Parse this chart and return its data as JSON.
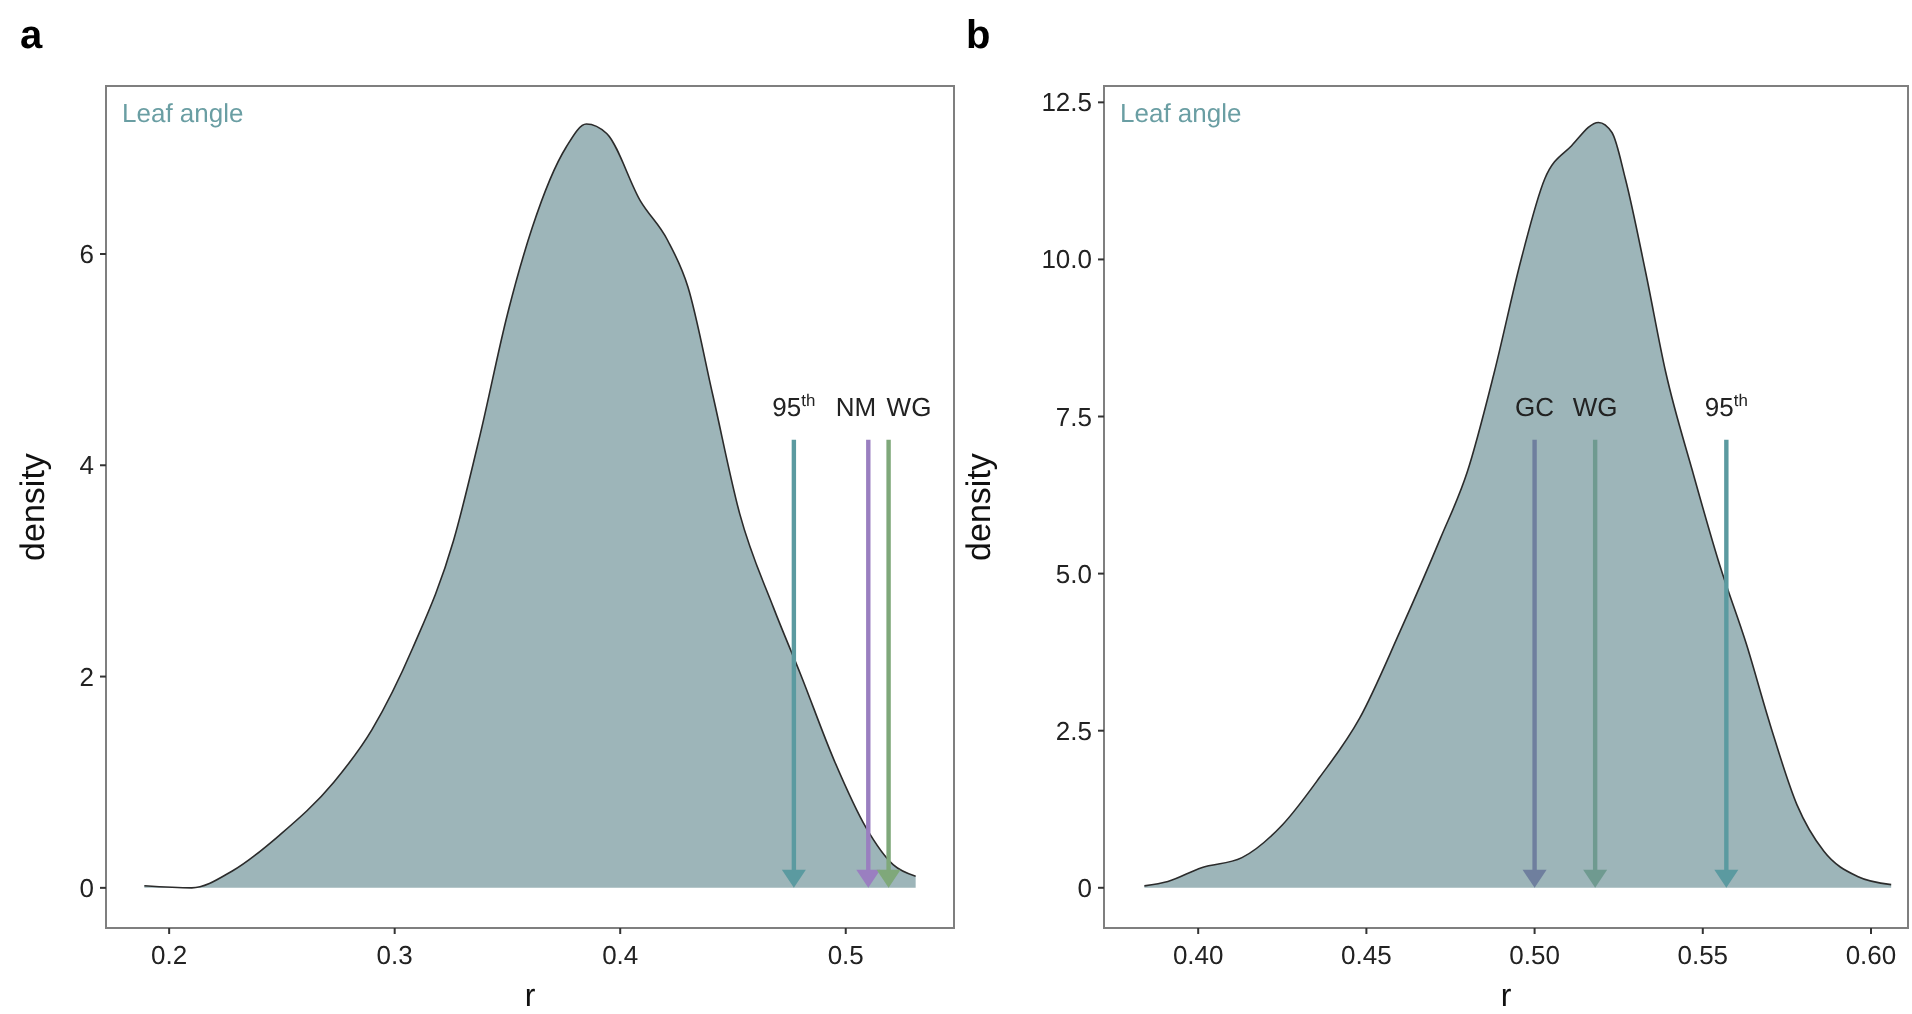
{
  "chart_data": [
    {
      "type": "area",
      "title": "a",
      "xlabel": "r",
      "ylabel": "density",
      "annotations": [
        "Leaf angle"
      ],
      "xlim": [
        0.172,
        0.548
      ],
      "ylim": [
        -0.38,
        7.59
      ],
      "xticks": [
        0.2,
        0.3,
        0.4,
        0.5
      ],
      "yticks": [
        0,
        2,
        4,
        6
      ],
      "grid": false,
      "series": [
        {
          "color": "#9db5b9",
          "x": [
            0.189,
            0.21,
            0.228,
            0.249,
            0.273,
            0.29,
            0.308,
            0.326,
            0.338,
            0.35,
            0.361,
            0.376,
            0.385,
            0.394,
            0.409,
            0.421,
            0.43,
            0.441,
            0.453,
            0.468,
            0.48,
            0.495,
            0.509,
            0.521,
            0.531
          ],
          "values": [
            0.02,
            0,
            0.16,
            0.5,
            1.0,
            1.5,
            2.27,
            3.28,
            4.3,
            5.43,
            6.25,
            7.01,
            7.23,
            7.14,
            6.5,
            6.13,
            5.69,
            4.67,
            3.54,
            2.65,
            2.02,
            1.2,
            0.57,
            0.22,
            0.11
          ]
        }
      ],
      "ref_lines": [
        {
          "axis": "x",
          "value": 0.477,
          "label": "95$^{th}$",
          "color": "#5b9aa0"
        },
        {
          "axis": "x",
          "value": 0.51,
          "label": "NM",
          "color": "#9a7fc0"
        },
        {
          "axis": "x",
          "value": 0.519,
          "label": "WG",
          "color": "#7fa87a"
        }
      ]
    },
    {
      "type": "area",
      "title": "b",
      "xlabel": "r",
      "ylabel": "density",
      "annotations": [
        "Leaf angle"
      ],
      "xlim": [
        0.372,
        0.611
      ],
      "ylim": [
        -0.64,
        12.76
      ],
      "xticks": [
        {
          "value": 0.4,
          "label": "0.40"
        },
        {
          "value": 0.45,
          "label": "0.45"
        },
        {
          "value": 0.5,
          "label": "0.50"
        },
        {
          "value": 0.55,
          "label": "0.55"
        },
        {
          "value": 0.6,
          "label": "0.60"
        }
      ],
      "yticks": [
        0,
        2.5,
        {
          "value": 5,
          "label": "5.0"
        },
        7.5,
        {
          "value": 10,
          "label": "10.0"
        },
        12.5
      ],
      "grid": false,
      "series": [
        {
          "color": "#9db5b9",
          "x": [
            0.384,
            0.391,
            0.401,
            0.413,
            0.425,
            0.436,
            0.448,
            0.46,
            0.472,
            0.48,
            0.488,
            0.496,
            0.503,
            0.511,
            0.519,
            0.523,
            0.527,
            0.533,
            0.539,
            0.547,
            0.555,
            0.563,
            0.57,
            0.578,
            0.586,
            0.596,
            0.606
          ],
          "values": [
            0.03,
            0.1,
            0.32,
            0.48,
            1.0,
            1.75,
            2.7,
            4.08,
            5.56,
            6.62,
            8.2,
            10.0,
            11.28,
            11.81,
            12.18,
            12.02,
            11.28,
            9.8,
            8.2,
            6.62,
            5.14,
            3.87,
            2.6,
            1.32,
            0.58,
            0.18,
            0.05
          ]
        }
      ],
      "ref_lines": [
        {
          "axis": "x",
          "value": 0.5,
          "label": "GC",
          "color": "#6f7f9e"
        },
        {
          "axis": "x",
          "value": 0.518,
          "label": "WG",
          "color": "#6f9a90"
        },
        {
          "axis": "x",
          "value": 0.557,
          "label": "95$^{th}$",
          "color": "#5b9aa0"
        }
      ]
    }
  ]
}
